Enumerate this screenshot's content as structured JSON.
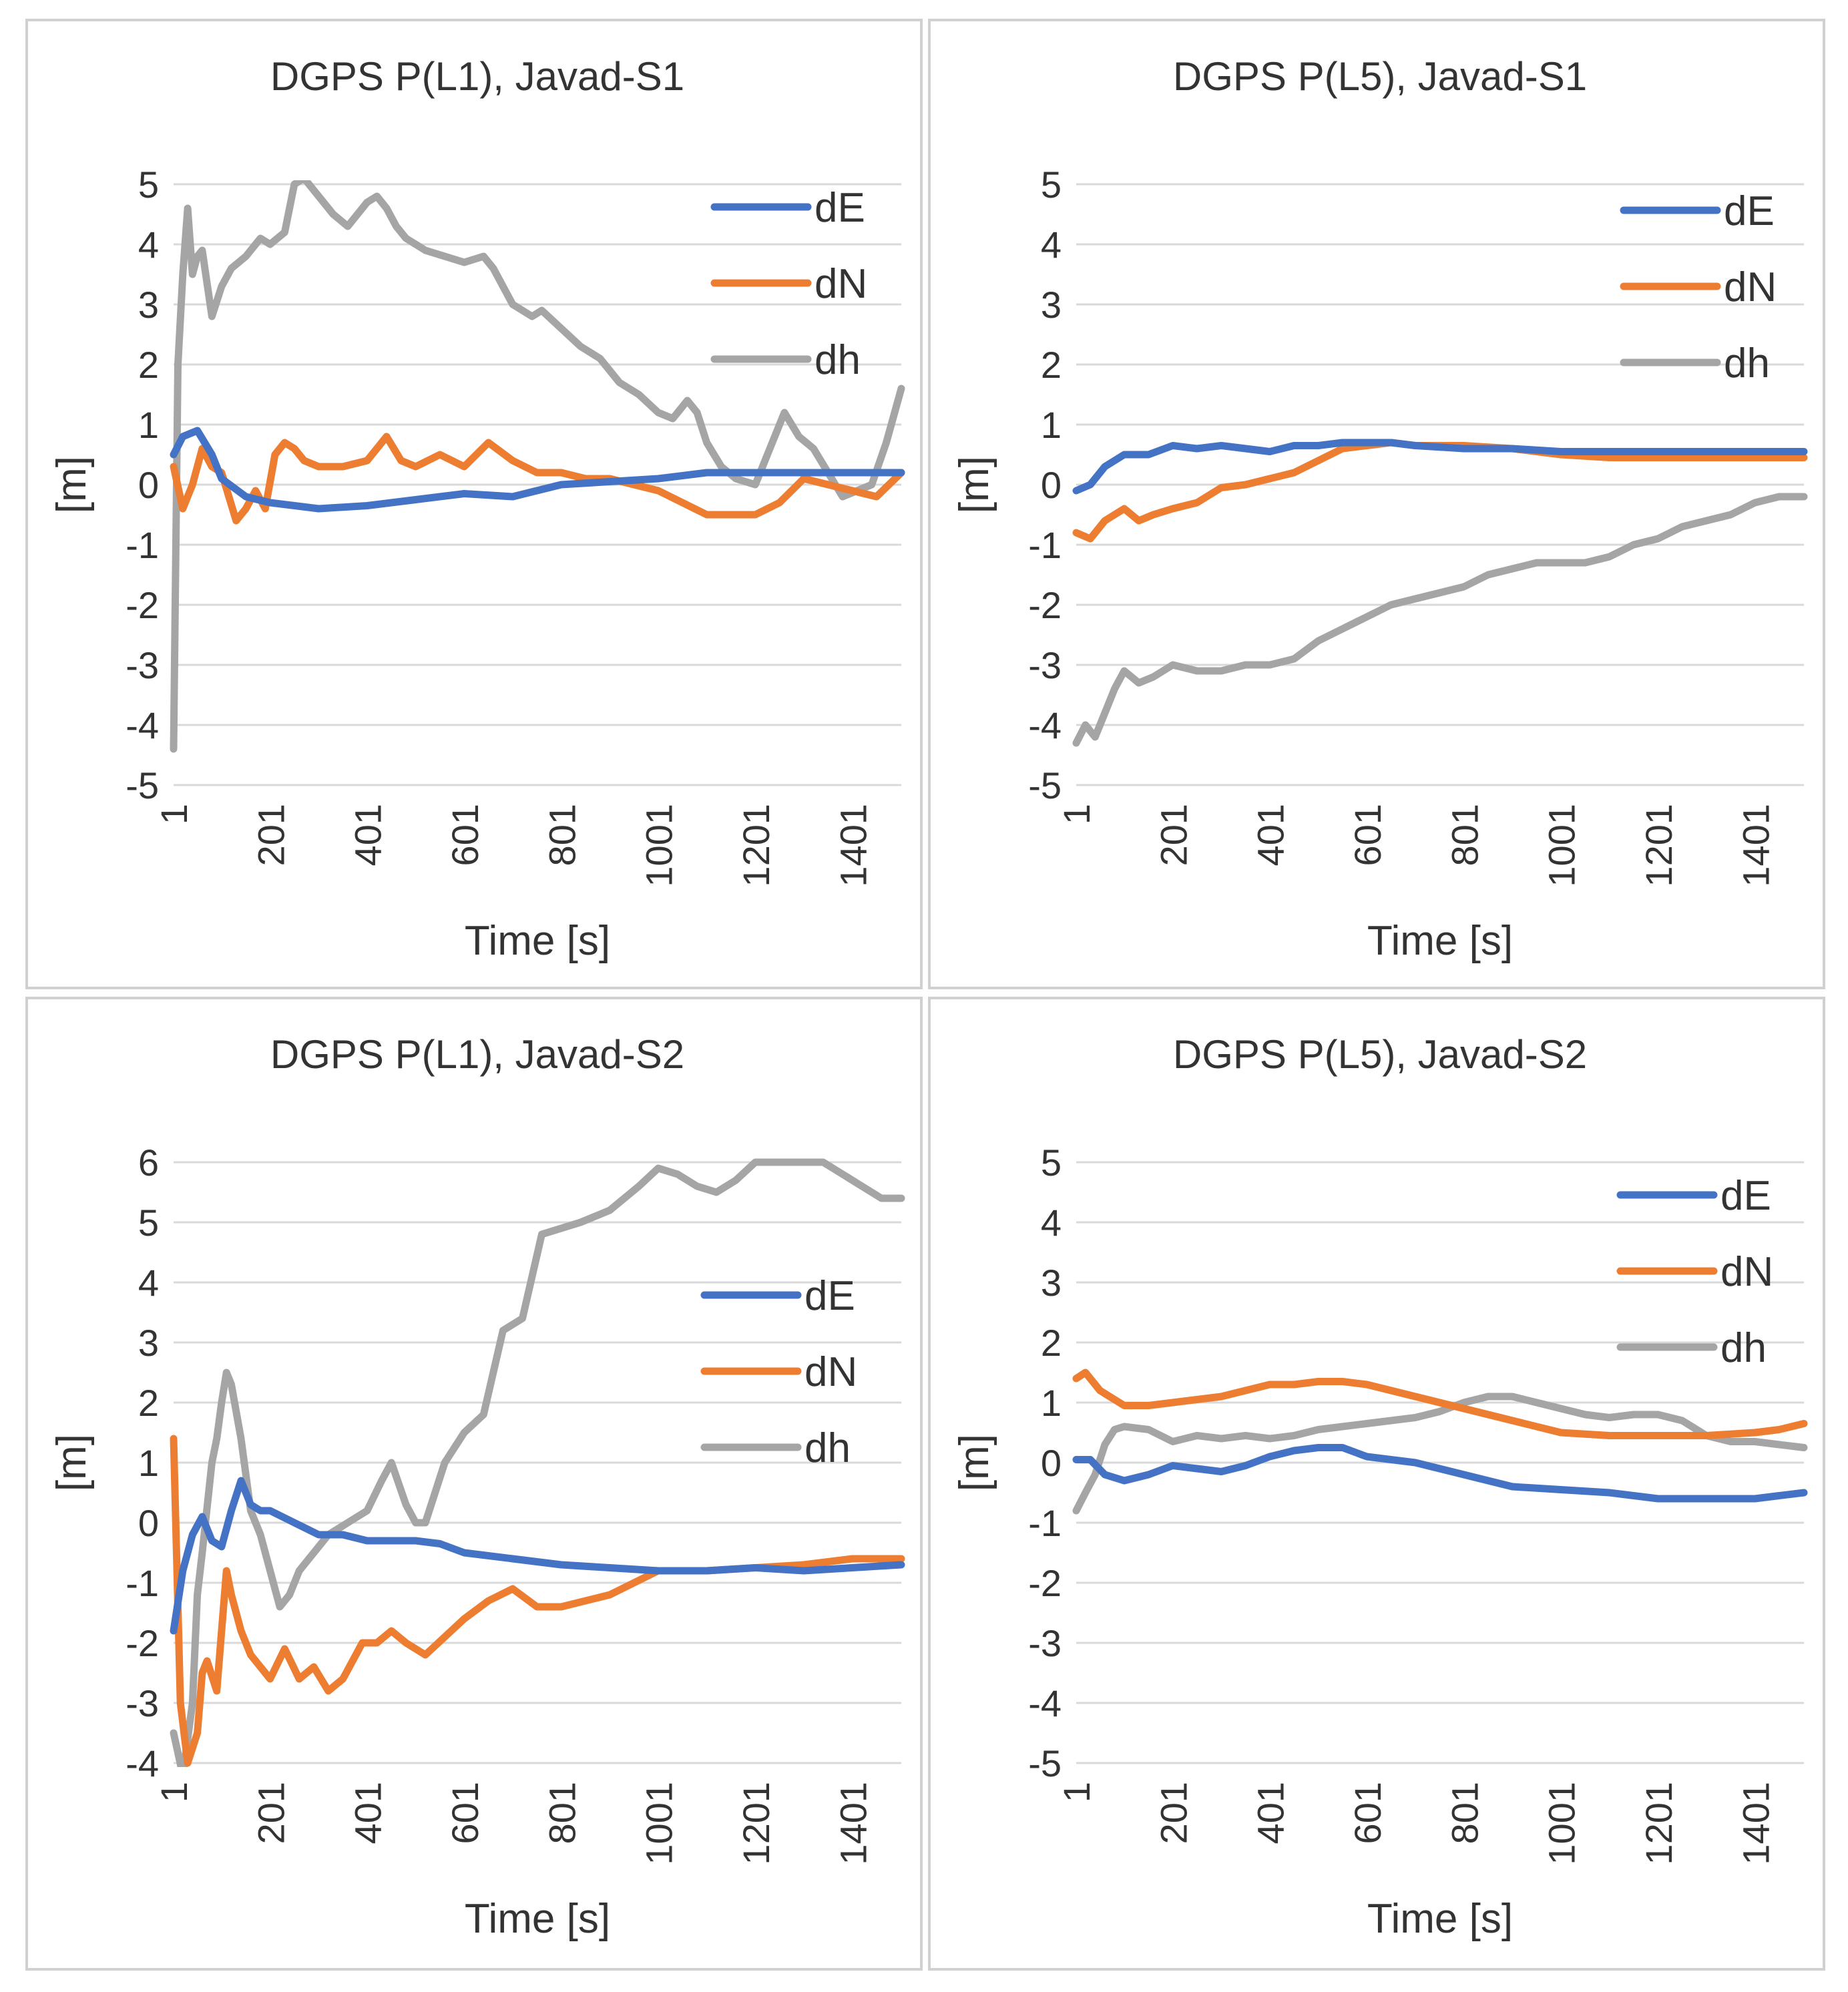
{
  "colors": {
    "dE": "#4472C4",
    "dN": "#ED7D31",
    "dh": "#A5A5A5"
  },
  "chart_data": [
    {
      "type": "line",
      "title": "DGPS P(L1), Javad-S1",
      "xlabel": "Time [s]",
      "ylabel": "[m]",
      "ylim": [
        -5,
        5
      ],
      "yticks": [
        "5",
        "4",
        "3",
        "2",
        "1",
        "0",
        "-1",
        "-2",
        "-3",
        "-4",
        "-5"
      ],
      "xlim": [
        1,
        1501
      ],
      "xticks": [
        "1",
        "201",
        "401",
        "601",
        "801",
        "1001",
        "1201",
        "1401"
      ],
      "legend_position": "top-right",
      "series": [
        {
          "name": "dE",
          "x": [
            1,
            20,
            50,
            80,
            100,
            150,
            200,
            300,
            400,
            500,
            600,
            700,
            800,
            900,
            1000,
            1100,
            1200,
            1300,
            1400,
            1501
          ],
          "values": [
            0.5,
            0.8,
            0.9,
            0.5,
            0.1,
            -0.2,
            -0.3,
            -0.4,
            -0.35,
            -0.25,
            -0.15,
            -0.2,
            0,
            0.05,
            0.1,
            0.2,
            0.2,
            0.2,
            0.2,
            0.2
          ]
        },
        {
          "name": "dN",
          "x": [
            1,
            20,
            40,
            60,
            80,
            100,
            130,
            150,
            170,
            190,
            210,
            230,
            250,
            270,
            300,
            350,
            400,
            440,
            470,
            500,
            550,
            600,
            650,
            700,
            750,
            800,
            850,
            900,
            950,
            1000,
            1050,
            1100,
            1150,
            1200,
            1250,
            1300,
            1350,
            1400,
            1450,
            1501
          ],
          "values": [
            0.3,
            -0.4,
            0,
            0.6,
            0.3,
            0.2,
            -0.6,
            -0.4,
            -0.1,
            -0.4,
            0.5,
            0.7,
            0.6,
            0.4,
            0.3,
            0.3,
            0.4,
            0.8,
            0.4,
            0.3,
            0.5,
            0.3,
            0.7,
            0.4,
            0.2,
            0.2,
            0.1,
            0.1,
            0,
            -0.1,
            -0.3,
            -0.5,
            -0.5,
            -0.5,
            -0.3,
            0.1,
            0,
            -0.1,
            -0.2,
            0.2
          ]
        },
        {
          "name": "dh",
          "x": [
            1,
            10,
            20,
            30,
            40,
            50,
            60,
            80,
            100,
            120,
            150,
            180,
            200,
            230,
            250,
            270,
            300,
            330,
            360,
            380,
            400,
            420,
            440,
            460,
            480,
            520,
            560,
            600,
            640,
            660,
            700,
            740,
            760,
            800,
            840,
            880,
            920,
            960,
            1000,
            1030,
            1060,
            1080,
            1100,
            1130,
            1160,
            1200,
            1230,
            1260,
            1290,
            1320,
            1350,
            1380,
            1410,
            1440,
            1470,
            1501
          ],
          "values": [
            -4.4,
            2,
            3.5,
            4.6,
            3.5,
            3.8,
            3.9,
            2.8,
            3.3,
            3.6,
            3.8,
            4.1,
            4,
            4.2,
            5,
            5.1,
            4.8,
            4.5,
            4.3,
            4.5,
            4.7,
            4.8,
            4.6,
            4.3,
            4.1,
            3.9,
            3.8,
            3.7,
            3.8,
            3.6,
            3,
            2.8,
            2.9,
            2.6,
            2.3,
            2.1,
            1.7,
            1.5,
            1.2,
            1.1,
            1.4,
            1.2,
            0.7,
            0.3,
            0.1,
            0,
            0.6,
            1.2,
            0.8,
            0.6,
            0.2,
            -0.2,
            -0.1,
            0,
            0.7,
            1.6
          ]
        }
      ]
    },
    {
      "type": "line",
      "title": "DGPS P(L5), Javad-S1",
      "xlabel": "Time [s]",
      "ylabel": "[m]",
      "ylim": [
        -5,
        5
      ],
      "yticks": [
        "5",
        "4",
        "3",
        "2",
        "1",
        "0",
        "-1",
        "-2",
        "-3",
        "-4",
        "-5"
      ],
      "xlim": [
        1,
        1501
      ],
      "xticks": [
        "1",
        "201",
        "401",
        "601",
        "801",
        "1001",
        "1201",
        "1401"
      ],
      "legend_position": "top-right",
      "series": [
        {
          "name": "dE",
          "x": [
            1,
            30,
            60,
            100,
            150,
            200,
            250,
            300,
            350,
            400,
            450,
            500,
            550,
            600,
            650,
            700,
            800,
            900,
            1000,
            1100,
            1200,
            1300,
            1400,
            1501
          ],
          "values": [
            -0.1,
            0,
            0.3,
            0.5,
            0.5,
            0.65,
            0.6,
            0.65,
            0.6,
            0.55,
            0.65,
            0.65,
            0.7,
            0.7,
            0.7,
            0.65,
            0.6,
            0.6,
            0.55,
            0.55,
            0.55,
            0.55,
            0.55,
            0.55
          ]
        },
        {
          "name": "dN",
          "x": [
            1,
            30,
            60,
            80,
            100,
            130,
            160,
            200,
            250,
            300,
            350,
            400,
            450,
            500,
            550,
            600,
            650,
            700,
            800,
            900,
            1000,
            1100,
            1200,
            1300,
            1400,
            1501
          ],
          "values": [
            -0.8,
            -0.9,
            -0.6,
            -0.5,
            -0.4,
            -0.6,
            -0.5,
            -0.4,
            -0.3,
            -0.05,
            0,
            0.1,
            0.2,
            0.4,
            0.6,
            0.65,
            0.7,
            0.65,
            0.65,
            0.6,
            0.5,
            0.45,
            0.45,
            0.45,
            0.45,
            0.45
          ]
        },
        {
          "name": "dh",
          "x": [
            1,
            20,
            40,
            60,
            80,
            100,
            130,
            160,
            200,
            250,
            300,
            350,
            400,
            450,
            500,
            550,
            600,
            650,
            700,
            750,
            800,
            850,
            900,
            950,
            1000,
            1050,
            1100,
            1150,
            1200,
            1250,
            1300,
            1350,
            1400,
            1450,
            1501
          ],
          "values": [
            -4.3,
            -4,
            -4.2,
            -3.8,
            -3.4,
            -3.1,
            -3.3,
            -3.2,
            -3,
            -3.1,
            -3.1,
            -3,
            -3,
            -2.9,
            -2.6,
            -2.4,
            -2.2,
            -2,
            -1.9,
            -1.8,
            -1.7,
            -1.5,
            -1.4,
            -1.3,
            -1.3,
            -1.3,
            -1.2,
            -1,
            -0.9,
            -0.7,
            -0.6,
            -0.5,
            -0.3,
            -0.2,
            -0.2
          ]
        }
      ]
    },
    {
      "type": "line",
      "title": "DGPS P(L1), Javad-S2",
      "xlabel": "Time [s]",
      "ylabel": "[m]",
      "ylim": [
        -4,
        6
      ],
      "yticks": [
        "6",
        "5",
        "4",
        "3",
        "2",
        "1",
        "0",
        "-1",
        "-2",
        "-3",
        "-4"
      ],
      "xlim": [
        1,
        1501
      ],
      "xticks": [
        "1",
        "201",
        "401",
        "601",
        "801",
        "1001",
        "1201",
        "1401"
      ],
      "legend_position": "right",
      "series": [
        {
          "name": "dE",
          "x": [
            1,
            20,
            40,
            60,
            80,
            100,
            120,
            140,
            160,
            180,
            200,
            250,
            300,
            350,
            400,
            450,
            500,
            550,
            600,
            700,
            800,
            900,
            1000,
            1100,
            1200,
            1300,
            1400,
            1501
          ],
          "values": [
            -1.8,
            -0.8,
            -0.2,
            0.1,
            -0.3,
            -0.4,
            0.2,
            0.7,
            0.3,
            0.2,
            0.2,
            0,
            -0.2,
            -0.2,
            -0.3,
            -0.3,
            -0.3,
            -0.35,
            -0.5,
            -0.6,
            -0.7,
            -0.75,
            -0.8,
            -0.8,
            -0.75,
            -0.8,
            -0.75,
            -0.7
          ]
        },
        {
          "name": "dN",
          "x": [
            1,
            15,
            30,
            50,
            60,
            70,
            90,
            100,
            110,
            120,
            140,
            160,
            200,
            230,
            260,
            290,
            320,
            350,
            390,
            420,
            450,
            480,
            520,
            560,
            600,
            650,
            700,
            750,
            800,
            900,
            1000,
            1100,
            1200,
            1300,
            1400,
            1501
          ],
          "values": [
            1.4,
            -3,
            -4,
            -3.5,
            -2.5,
            -2.3,
            -2.8,
            -1.8,
            -0.8,
            -1.2,
            -1.8,
            -2.2,
            -2.6,
            -2.1,
            -2.6,
            -2.4,
            -2.8,
            -2.6,
            -2,
            -2,
            -1.8,
            -2,
            -2.2,
            -1.9,
            -1.6,
            -1.3,
            -1.1,
            -1.4,
            -1.4,
            -1.2,
            -0.8,
            -0.8,
            -0.75,
            -0.7,
            -0.6,
            -0.6
          ]
        },
        {
          "name": "dh",
          "x": [
            1,
            20,
            40,
            50,
            60,
            80,
            90,
            100,
            110,
            120,
            140,
            160,
            180,
            200,
            220,
            240,
            260,
            290,
            320,
            360,
            400,
            430,
            450,
            480,
            500,
            520,
            560,
            600,
            640,
            680,
            720,
            760,
            800,
            840,
            900,
            960,
            1000,
            1040,
            1080,
            1120,
            1160,
            1200,
            1260,
            1300,
            1340,
            1380,
            1420,
            1460,
            1501
          ],
          "values": [
            -3.5,
            -4.2,
            -3,
            -1.2,
            -0.5,
            1,
            1.4,
            2,
            2.5,
            2.3,
            1.4,
            0.2,
            -0.2,
            -0.8,
            -1.4,
            -1.2,
            -0.8,
            -0.5,
            -0.2,
            0,
            0.2,
            0.7,
            1,
            0.3,
            0,
            0,
            1,
            1.5,
            1.8,
            3.2,
            3.4,
            4.8,
            4.9,
            5,
            5.2,
            5.6,
            5.9,
            5.8,
            5.6,
            5.5,
            5.7,
            6,
            6,
            6,
            6,
            5.8,
            5.6,
            5.4,
            5.4
          ]
        }
      ]
    },
    {
      "type": "line",
      "title": "DGPS P(L5), Javad-S2",
      "xlabel": "Time [s]",
      "ylabel": "[m]",
      "ylim": [
        -5,
        5
      ],
      "yticks": [
        "5",
        "4",
        "3",
        "2",
        "1",
        "0",
        "-1",
        "-2",
        "-3",
        "-4",
        "-5"
      ],
      "xlim": [
        1,
        1501
      ],
      "xticks": [
        "1",
        "201",
        "401",
        "601",
        "801",
        "1001",
        "1201",
        "1401"
      ],
      "legend_position": "top-right",
      "series": [
        {
          "name": "dE",
          "x": [
            1,
            30,
            60,
            100,
            150,
            200,
            250,
            300,
            350,
            400,
            450,
            500,
            550,
            600,
            700,
            800,
            900,
            1000,
            1100,
            1200,
            1300,
            1400,
            1450,
            1501
          ],
          "values": [
            0.05,
            0.05,
            -0.2,
            -0.3,
            -0.2,
            -0.05,
            -0.1,
            -0.15,
            -0.05,
            0.1,
            0.2,
            0.25,
            0.25,
            0.1,
            0,
            -0.2,
            -0.4,
            -0.45,
            -0.5,
            -0.6,
            -0.6,
            -0.6,
            -0.55,
            -0.5
          ]
        },
        {
          "name": "dN",
          "x": [
            1,
            20,
            50,
            100,
            150,
            200,
            250,
            300,
            350,
            400,
            450,
            500,
            550,
            600,
            650,
            700,
            800,
            900,
            1000,
            1100,
            1200,
            1300,
            1400,
            1450,
            1501
          ],
          "values": [
            1.4,
            1.5,
            1.2,
            0.95,
            0.95,
            1,
            1.05,
            1.1,
            1.2,
            1.3,
            1.3,
            1.35,
            1.35,
            1.3,
            1.2,
            1.1,
            0.9,
            0.7,
            0.5,
            0.45,
            0.45,
            0.45,
            0.5,
            0.55,
            0.65
          ]
        },
        {
          "name": "dh",
          "x": [
            1,
            20,
            40,
            60,
            80,
            100,
            150,
            200,
            250,
            300,
            350,
            400,
            450,
            500,
            550,
            600,
            650,
            700,
            750,
            800,
            850,
            900,
            950,
            1000,
            1050,
            1100,
            1150,
            1200,
            1250,
            1300,
            1350,
            1400,
            1450,
            1501
          ],
          "values": [
            -0.8,
            -0.5,
            -0.2,
            0.3,
            0.55,
            0.6,
            0.55,
            0.35,
            0.45,
            0.4,
            0.45,
            0.4,
            0.45,
            0.55,
            0.6,
            0.65,
            0.7,
            0.75,
            0.85,
            1,
            1.1,
            1.1,
            1,
            0.9,
            0.8,
            0.75,
            0.8,
            0.8,
            0.7,
            0.45,
            0.35,
            0.35,
            0.3,
            0.25
          ]
        }
      ]
    }
  ]
}
